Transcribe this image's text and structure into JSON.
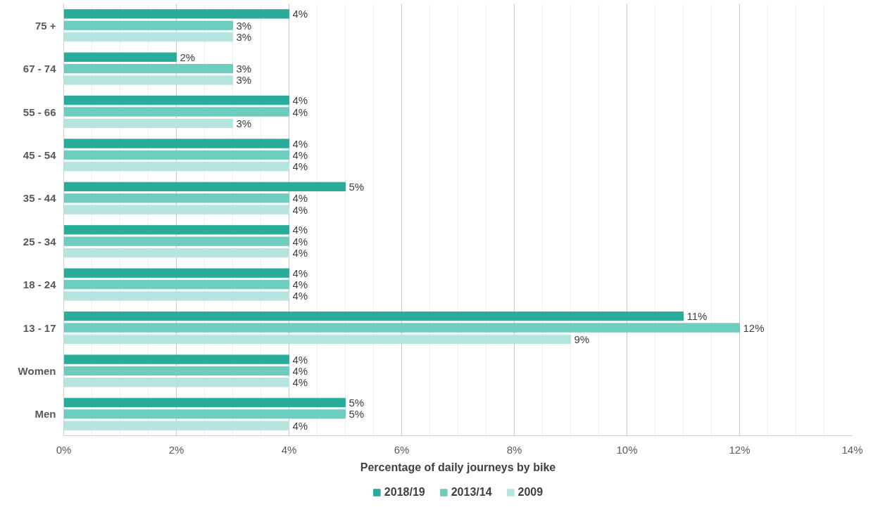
{
  "chart_data": {
    "type": "bar",
    "orientation": "horizontal",
    "xlabel": "Percentage of daily journeys by bike",
    "categories": [
      "75 +",
      "67 - 74",
      "55 - 66",
      "45 - 54",
      "35 - 44",
      "25 - 34",
      "18 - 24",
      "13 - 17",
      "Women",
      "Men"
    ],
    "series": [
      {
        "name": "2018/19",
        "color": "#2aac9a",
        "values": [
          4,
          2,
          4,
          4,
          5,
          4,
          4,
          11,
          4,
          5
        ],
        "value_labels": [
          "4%",
          "2%",
          "4%",
          "4%",
          "5%",
          "4%",
          "4%",
          "11%",
          "4%",
          "5%"
        ]
      },
      {
        "name": "2013/14",
        "color": "#6fcdc0",
        "values": [
          3,
          3,
          4,
          4,
          4,
          4,
          4,
          12,
          4,
          5
        ],
        "value_labels": [
          "3%",
          "3%",
          "4%",
          "4%",
          "4%",
          "4%",
          "4%",
          "12%",
          "4%",
          "5%"
        ]
      },
      {
        "name": "2009",
        "color": "#b6e4df",
        "values": [
          3,
          3,
          3,
          4,
          4,
          4,
          4,
          9,
          4,
          4
        ],
        "value_labels": [
          "3%",
          "3%",
          "3%",
          "4%",
          "4%",
          "4%",
          "4%",
          "9%",
          "4%",
          "4%"
        ]
      }
    ],
    "xlim": [
      0,
      14
    ],
    "xticks": [
      {
        "value": 0,
        "label": "0%"
      },
      {
        "value": 2,
        "label": "2%"
      },
      {
        "value": 4,
        "label": "4%"
      },
      {
        "value": 6,
        "label": "6%"
      },
      {
        "value": 8,
        "label": "8%"
      },
      {
        "value": 10,
        "label": "10%"
      },
      {
        "value": 12,
        "label": "12%"
      },
      {
        "value": 14,
        "label": "14%"
      }
    ],
    "grid": "x",
    "legend": "bottom"
  }
}
